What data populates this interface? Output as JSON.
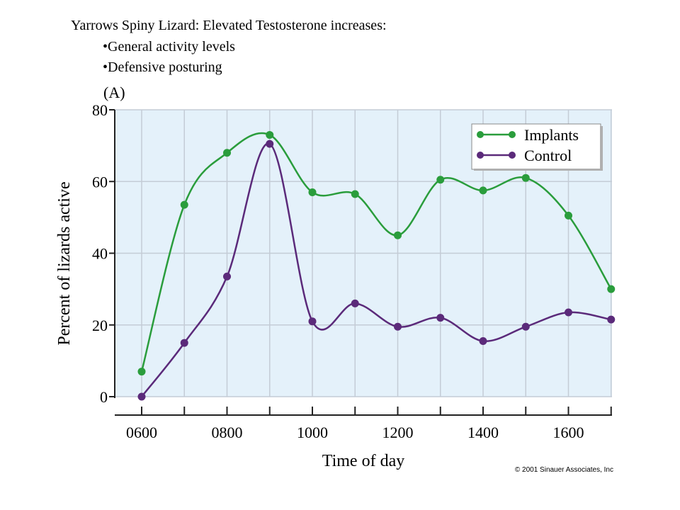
{
  "slide": {
    "heading": "Yarrows Spiny Lizard: Elevated Testosterone increases:",
    "bullets": [
      "•General activity levels",
      "•Defensive posturing"
    ]
  },
  "figure": {
    "panel_label": "(A)",
    "copyright": "© 2001 Sinauer Associates, Inc"
  },
  "colors": {
    "implants": "#2a9d3c",
    "control": "#5b2a7a",
    "plot_bg": "#e4f1fa",
    "grid": "#c4ccd6"
  },
  "chart_data": {
    "type": "line",
    "title": "",
    "xlabel": "Time of day",
    "ylabel": "Percent of lizards active",
    "x": [
      600,
      700,
      800,
      900,
      1000,
      1100,
      1200,
      1300,
      1400,
      1500,
      1600,
      1700
    ],
    "x_tick_labels": [
      "0600",
      "0800",
      "1000",
      "1200",
      "1400",
      "1600"
    ],
    "x_tick_values": [
      600,
      800,
      1000,
      1200,
      1400,
      1600
    ],
    "ylim": [
      0,
      80
    ],
    "y_ticks": [
      0,
      20,
      40,
      60,
      80
    ],
    "grid": true,
    "legend_position": "top-right",
    "series": [
      {
        "name": "Implants",
        "values": [
          7,
          53.5,
          68,
          73,
          57,
          56.5,
          45,
          60.5,
          57.5,
          61,
          50.5,
          30
        ]
      },
      {
        "name": "Control",
        "values": [
          0,
          15,
          33.5,
          70.5,
          21,
          26,
          19.5,
          22,
          15.5,
          19.5,
          23.5,
          21.5
        ]
      }
    ]
  }
}
